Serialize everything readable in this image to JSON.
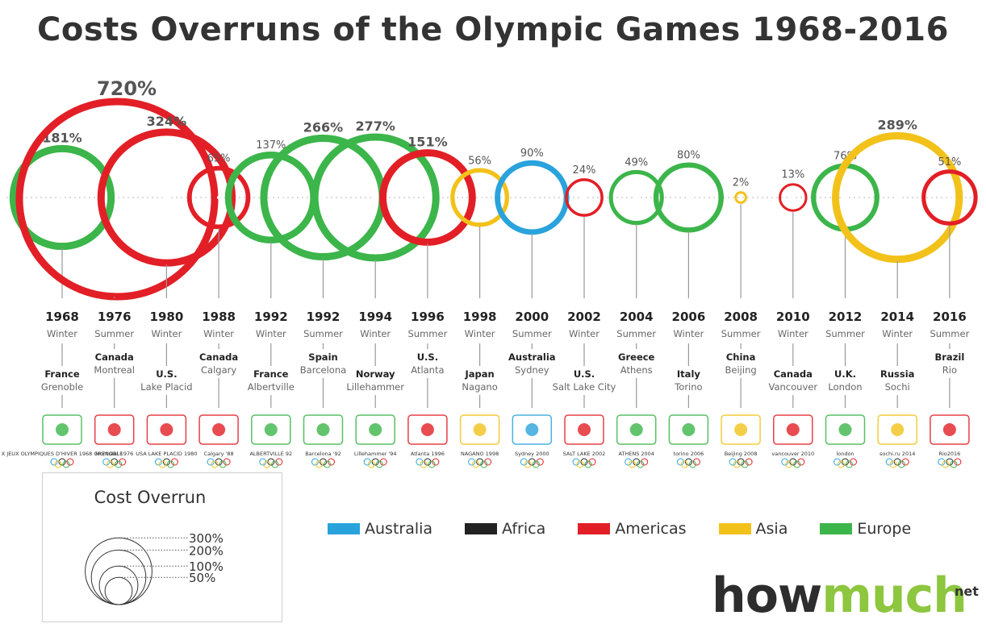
{
  "title": "Costs Overruns of the Olympic Games 1968-2016",
  "colors": {
    "Australia": "#2aa3dc",
    "Africa": "#222222",
    "Americas": "#e21f26",
    "Asia": "#f2c21b",
    "Europe": "#3cb54a"
  },
  "legend": {
    "items": [
      {
        "label": "Australia",
        "color": "#2aa3dc"
      },
      {
        "label": "Africa",
        "color": "#222222"
      },
      {
        "label": "Americas",
        "color": "#e21f26"
      },
      {
        "label": "Asia",
        "color": "#f2c21b"
      },
      {
        "label": "Europe",
        "color": "#3cb54a"
      }
    ]
  },
  "size_legend": {
    "title": "Cost Overrun",
    "entries": [
      {
        "value": 300,
        "label": "300%"
      },
      {
        "value": 200,
        "label": "200%"
      },
      {
        "value": 100,
        "label": "100%"
      },
      {
        "value": 50,
        "label": "50%"
      }
    ]
  },
  "brand": {
    "how": "how",
    "much": "much",
    "tld": "net"
  },
  "chart_data": {
    "type": "bubble-timeline",
    "title": "Costs Overruns of the Olympic Games 1968-2016",
    "size_encodes": "Cost Overrun",
    "games": [
      {
        "year": "1968",
        "season": "Winter",
        "country": "France",
        "city": "Grenoble",
        "overrun": 181,
        "label": "181%",
        "region": "Europe",
        "logo": "grenoble-1968-logo"
      },
      {
        "year": "1976",
        "season": "Summer",
        "country": "Canada",
        "city": "Montreal",
        "overrun": 720,
        "label": "720%",
        "region": "Americas",
        "logo": "montreal-1976-logo"
      },
      {
        "year": "1980",
        "season": "Winter",
        "country": "U.S.",
        "city": "Lake Placid",
        "overrun": 324,
        "label": "324%",
        "region": "Americas",
        "logo": "lake-placid-1980-logo"
      },
      {
        "year": "1988",
        "season": "Winter",
        "country": "Canada",
        "city": "Calgary",
        "overrun": 65,
        "label": "65%",
        "region": "Americas",
        "logo": "calgary-1988-logo"
      },
      {
        "year": "1992",
        "season": "Winter",
        "country": "France",
        "city": "Albertville",
        "overrun": 137,
        "label": "137%",
        "region": "Europe",
        "logo": "albertville-1992-logo"
      },
      {
        "year": "1992",
        "season": "Summer",
        "country": "Spain",
        "city": "Barcelona",
        "overrun": 266,
        "label": "266%",
        "region": "Europe",
        "logo": "barcelona-1992-logo"
      },
      {
        "year": "1994",
        "season": "Winter",
        "country": "Norway",
        "city": "Lillehammer",
        "overrun": 277,
        "label": "277%",
        "region": "Europe",
        "logo": "lillehammer-1994-logo"
      },
      {
        "year": "1996",
        "season": "Summer",
        "country": "U.S.",
        "city": "Atlanta",
        "overrun": 151,
        "label": "151%",
        "region": "Americas",
        "logo": "atlanta-1996-logo"
      },
      {
        "year": "1998",
        "season": "Winter",
        "country": "Japan",
        "city": "Nagano",
        "overrun": 56,
        "label": "56%",
        "region": "Asia",
        "logo": "nagano-1998-logo"
      },
      {
        "year": "2000",
        "season": "Summer",
        "country": "Australia",
        "city": "Sydney",
        "overrun": 90,
        "label": "90%",
        "region": "Australia",
        "logo": "sydney-2000-logo"
      },
      {
        "year": "2002",
        "season": "Winter",
        "country": "U.S.",
        "city": "Salt Lake City",
        "overrun": 24,
        "label": "24%",
        "region": "Americas",
        "logo": "salt-lake-2002-logo"
      },
      {
        "year": "2004",
        "season": "Summer",
        "country": "Greece",
        "city": "Athens",
        "overrun": 49,
        "label": "49%",
        "region": "Europe",
        "logo": "athens-2004-logo"
      },
      {
        "year": "2006",
        "season": "Winter",
        "country": "Italy",
        "city": "Torino",
        "overrun": 80,
        "label": "80%",
        "region": "Europe",
        "logo": "torino-2006-logo"
      },
      {
        "year": "2008",
        "season": "Summer",
        "country": "China",
        "city": "Beijing",
        "overrun": 2,
        "label": "2%",
        "region": "Asia",
        "logo": "beijing-2008-logo"
      },
      {
        "year": "2010",
        "season": "Winter",
        "country": "Canada",
        "city": "Vancouver",
        "overrun": 13,
        "label": "13%",
        "region": "Americas",
        "logo": "vancouver-2010-logo"
      },
      {
        "year": "2012",
        "season": "Summer",
        "country": "U.K.",
        "city": "London",
        "overrun": 76,
        "label": "76%",
        "region": "Europe",
        "logo": "london-2012-logo"
      },
      {
        "year": "2014",
        "season": "Winter",
        "country": "Russia",
        "city": "Sochi",
        "overrun": 289,
        "label": "289%",
        "region": "Asia",
        "logo": "sochi-2014-logo"
      },
      {
        "year": "2016",
        "season": "Summer",
        "country": "Brazil",
        "city": "Rio",
        "overrun": 51,
        "label": "51%",
        "region": "Americas",
        "logo": "rio-2016-logo"
      }
    ],
    "logo_text": [
      {
        "logo": "grenoble-1968-logo",
        "text": "X JEUX OLYMPIQUES D'HIVER 1968 GRENOBLE"
      },
      {
        "logo": "montreal-1976-logo",
        "text": "Montréal 1976"
      },
      {
        "logo": "lake-placid-1980-logo",
        "text": "USA LAKE PLACID 1980"
      },
      {
        "logo": "calgary-1988-logo",
        "text": "Calgary '88"
      },
      {
        "logo": "albertville-1992-logo",
        "text": "ALBERTVILLE 92"
      },
      {
        "logo": "barcelona-1992-logo",
        "text": "Barcelona '92"
      },
      {
        "logo": "lillehammer-1994-logo",
        "text": "Lillehammer '94"
      },
      {
        "logo": "atlanta-1996-logo",
        "text": "Atlanta 1996"
      },
      {
        "logo": "nagano-1998-logo",
        "text": "NAGANO 1998"
      },
      {
        "logo": "sydney-2000-logo",
        "text": "Sydney 2000"
      },
      {
        "logo": "salt-lake-2002-logo",
        "text": "SALT LAKE 2002"
      },
      {
        "logo": "athens-2004-logo",
        "text": "ATHENS 2004"
      },
      {
        "logo": "torino-2006-logo",
        "text": "torino 2006"
      },
      {
        "logo": "beijing-2008-logo",
        "text": "Beijing 2008"
      },
      {
        "logo": "vancouver-2010-logo",
        "text": "vancouver 2010"
      },
      {
        "logo": "london-2012-logo",
        "text": "london"
      },
      {
        "logo": "sochi-2014-logo",
        "text": "sochi.ru 2014"
      },
      {
        "logo": "rio-2016-logo",
        "text": "Rio2016"
      }
    ]
  }
}
